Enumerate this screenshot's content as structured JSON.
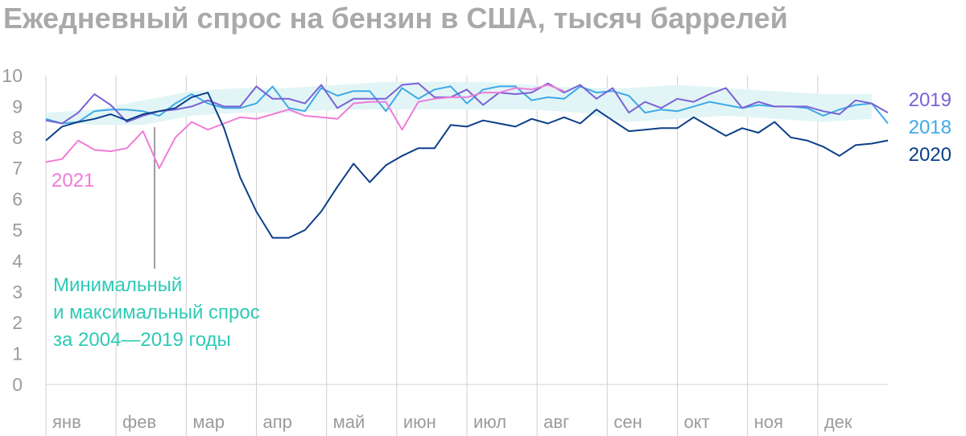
{
  "chart_data": {
    "type": "line",
    "title": "Ежедневный спрос на бензин в США, тысяч баррелей",
    "xlabel": "",
    "ylabel": "",
    "ylim": [
      0,
      10
    ],
    "yticks": [
      "0",
      "1",
      "2",
      "3",
      "4",
      "5",
      "6",
      "7",
      "8",
      "9",
      "10"
    ],
    "categories": [
      "янв",
      "фев",
      "мар",
      "апр",
      "май",
      "июн",
      "июл",
      "авг",
      "сен",
      "окт",
      "ноя",
      "дек"
    ],
    "x_unit": "week of year",
    "xlim": [
      1,
      53
    ],
    "grid": "vertical month lines",
    "band": {
      "label": "Минимальный и максимальный спрос за 2004—2019 годы",
      "color": "#e2f5f6",
      "x": [
        1,
        4,
        7,
        10,
        13,
        16,
        19,
        22,
        25,
        28,
        31,
        34,
        37,
        40,
        43,
        46,
        49,
        52
      ],
      "min": [
        8.5,
        8.4,
        8.4,
        8.7,
        8.8,
        8.8,
        8.9,
        8.9,
        8.9,
        8.9,
        8.9,
        8.8,
        8.5,
        8.6,
        8.7,
        8.6,
        8.5,
        8.6
      ],
      "max": [
        8.8,
        8.9,
        9.2,
        9.5,
        9.6,
        9.6,
        9.7,
        9.8,
        9.8,
        9.8,
        9.7,
        9.6,
        9.6,
        9.7,
        9.6,
        9.5,
        9.4,
        9.4
      ]
    },
    "series": [
      {
        "name": "2019",
        "color": "#7b61d6",
        "x": [
          1,
          2,
          3,
          4,
          5,
          6,
          7,
          8,
          9,
          10,
          11,
          12,
          13,
          14,
          15,
          16,
          17,
          18,
          19,
          20,
          21,
          22,
          23,
          24,
          25,
          26,
          27,
          28,
          29,
          30,
          31,
          32,
          33,
          34,
          35,
          36,
          37,
          38,
          39,
          40,
          41,
          42,
          43,
          44,
          45,
          46,
          47,
          48,
          49,
          50,
          51,
          52,
          53
        ],
        "values": [
          8.55,
          8.45,
          8.8,
          9.4,
          9.05,
          8.5,
          8.7,
          8.85,
          8.9,
          9.0,
          9.2,
          9.0,
          9.0,
          9.65,
          9.25,
          9.25,
          9.1,
          9.7,
          8.95,
          9.25,
          9.25,
          9.25,
          9.7,
          9.75,
          9.3,
          9.3,
          9.55,
          9.05,
          9.45,
          9.4,
          9.45,
          9.75,
          9.45,
          9.7,
          9.25,
          9.6,
          8.8,
          9.15,
          8.95,
          9.25,
          9.15,
          9.4,
          9.6,
          8.95,
          9.15,
          9.0,
          9.0,
          9.0,
          8.85,
          8.75,
          9.2,
          9.1,
          8.8
        ]
      },
      {
        "name": "2018",
        "color": "#3fa9e6",
        "x": [
          1,
          2,
          3,
          4,
          5,
          6,
          7,
          8,
          9,
          10,
          11,
          12,
          13,
          14,
          15,
          16,
          17,
          18,
          19,
          20,
          21,
          22,
          23,
          24,
          25,
          26,
          27,
          28,
          29,
          30,
          31,
          32,
          33,
          34,
          35,
          36,
          37,
          38,
          39,
          40,
          41,
          42,
          43,
          44,
          45,
          46,
          47,
          48,
          49,
          50,
          51,
          52,
          53
        ],
        "values": [
          8.6,
          8.45,
          8.5,
          8.85,
          8.9,
          8.9,
          8.85,
          8.7,
          9.1,
          9.4,
          9.1,
          8.95,
          8.95,
          9.1,
          9.65,
          8.95,
          8.85,
          9.6,
          9.35,
          9.5,
          9.5,
          8.85,
          9.6,
          9.25,
          9.55,
          9.65,
          9.1,
          9.55,
          9.65,
          9.65,
          9.2,
          9.3,
          9.25,
          9.65,
          9.45,
          9.5,
          9.35,
          8.8,
          8.9,
          8.85,
          9.0,
          9.15,
          9.05,
          8.95,
          9.05,
          9.0,
          9.0,
          8.95,
          8.7,
          8.9,
          9.05,
          9.1,
          8.45
        ]
      },
      {
        "name": "2020",
        "color": "#0b3f88",
        "x": [
          1,
          2,
          3,
          4,
          5,
          6,
          7,
          8,
          9,
          10,
          11,
          12,
          13,
          14,
          15,
          16,
          17,
          18,
          19,
          20,
          21,
          22,
          23,
          24,
          25,
          26,
          27,
          28,
          29,
          30,
          31,
          32,
          33,
          34,
          35,
          36,
          37,
          38,
          39,
          40,
          41,
          42,
          43,
          44,
          45,
          46,
          47,
          48,
          49,
          50,
          51,
          52,
          53
        ],
        "values": [
          7.9,
          8.35,
          8.5,
          8.6,
          8.75,
          8.55,
          8.75,
          8.85,
          8.95,
          9.3,
          9.45,
          8.3,
          6.7,
          5.6,
          4.75,
          4.75,
          5.0,
          5.6,
          6.4,
          7.15,
          6.55,
          7.1,
          7.4,
          7.65,
          7.65,
          8.4,
          8.35,
          8.55,
          8.45,
          8.35,
          8.6,
          8.45,
          8.65,
          8.45,
          8.9,
          8.55,
          8.2,
          8.25,
          8.3,
          8.3,
          8.65,
          8.35,
          8.05,
          8.3,
          8.15,
          8.5,
          8.0,
          7.9,
          7.7,
          7.4,
          7.75,
          7.8,
          7.9
        ]
      },
      {
        "name": "2021",
        "color": "#f07bd8",
        "x": [
          1,
          2,
          3,
          4,
          5,
          6,
          7,
          8,
          9,
          10,
          11,
          12,
          13,
          14,
          15,
          16,
          17,
          18,
          19,
          20,
          21,
          22,
          23,
          24,
          25,
          26,
          27,
          28,
          29,
          30,
          31,
          32,
          33
        ],
        "values": [
          7.2,
          7.3,
          7.9,
          7.6,
          7.55,
          7.65,
          8.2,
          7.0,
          8.0,
          8.5,
          8.25,
          8.45,
          8.65,
          8.6,
          8.75,
          8.9,
          8.7,
          8.65,
          8.6,
          9.1,
          9.15,
          9.15,
          8.25,
          9.15,
          9.25,
          9.3,
          9.3,
          9.45,
          9.45,
          9.6,
          9.55,
          9.7,
          9.5
        ]
      }
    ],
    "annotation": {
      "lines": [
        "Минимальный",
        "и максимальный спрос",
        "за 2004—2019 годы"
      ],
      "color": "#2ecab5"
    }
  }
}
